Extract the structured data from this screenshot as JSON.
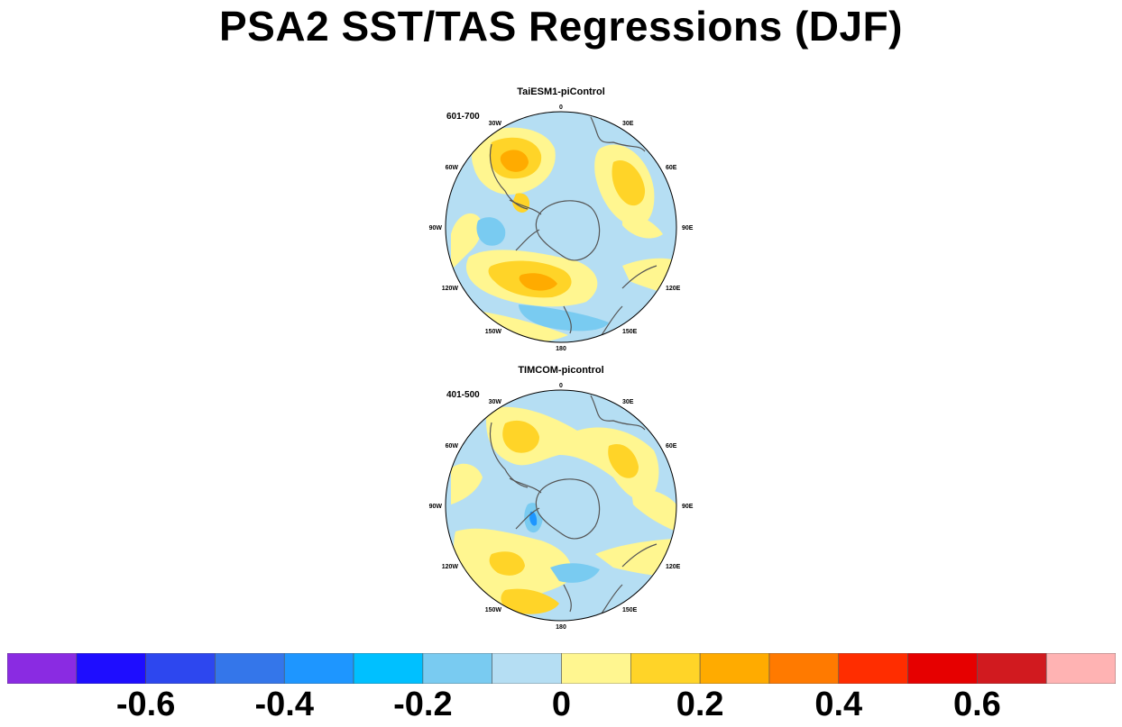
{
  "title": "PSA2 SST/TAS Regressions (DJF)",
  "panels": [
    {
      "title": "TaiESM1-piControl",
      "years": "601-700"
    },
    {
      "title": "TIMCOM-picontrol",
      "years": "401-500"
    }
  ],
  "lon_labels": [
    "0",
    "30E",
    "60E",
    "90E",
    "120E",
    "150E",
    "180",
    "150W",
    "120W",
    "90W",
    "60W",
    "30W"
  ],
  "colorbar": {
    "colors": [
      "#8a2be2",
      "#1e0dff",
      "#2d47ef",
      "#3476ea",
      "#1e96ff",
      "#00c0ff",
      "#79cbf1",
      "#b5def3",
      "#fff690",
      "#ffd428",
      "#ffab00",
      "#ff7a00",
      "#ff2d00",
      "#e60000",
      "#d11a1f",
      "#ffb3b3"
    ],
    "labels": [
      "-0.6",
      "-0.4",
      "-0.2",
      "0",
      "0.2",
      "0.4",
      "0.6"
    ]
  },
  "fill_colors": {
    "neutral_neg": "#b5def3",
    "neutral_pos": "#fff690",
    "pos_mid": "#ffd428",
    "pos_high": "#ffab00",
    "neg_mid": "#79cbf1",
    "neg_high": "#1e96ff"
  }
}
